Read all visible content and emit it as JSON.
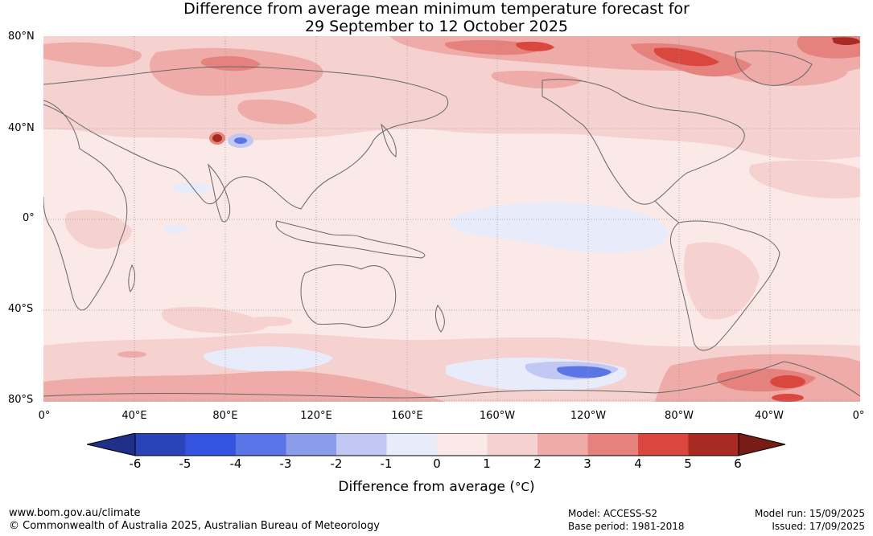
{
  "title_line1": "Difference from average mean minimum temperature forecast for",
  "title_line2": "29 September to 12 October 2025",
  "lat_labels": [
    "80°N",
    "40°N",
    "0°",
    "40°S",
    "80°S"
  ],
  "lon_labels": [
    "0°",
    "40°E",
    "80°E",
    "120°E",
    "160°E",
    "160°W",
    "120°W",
    "80°W",
    "40°W",
    "0°"
  ],
  "colorbar": {
    "ticks": [
      "-6",
      "-5",
      "-4",
      "-3",
      "-2",
      "-1",
      "0",
      "1",
      "2",
      "3",
      "4",
      "5",
      "6"
    ],
    "label": "Difference from average (°C)",
    "label_prefix": "Difference from average (",
    "label_unit": "°C",
    "label_suffix": ")",
    "colors": [
      "#1f2f8a",
      "#2a44b8",
      "#3353e0",
      "#5b74e6",
      "#8a9cea",
      "#c0c8f3",
      "#e8ecfa",
      "#fbe9e8",
      "#f5d2d0",
      "#eeaba8",
      "#e5827d",
      "#d9473f",
      "#a92a22",
      "#7a1c16"
    ]
  },
  "footer": {
    "website": "www.bom.gov.au/climate",
    "copyright": "© Commonwealth of Australia 2025, Australian Bureau of Meteorology",
    "model": "Model: ACCESS-S2",
    "base_period": "Base period: 1981-2018",
    "model_run": "Model run: 15/09/2025",
    "issued": "Issued: 17/09/2025"
  }
}
